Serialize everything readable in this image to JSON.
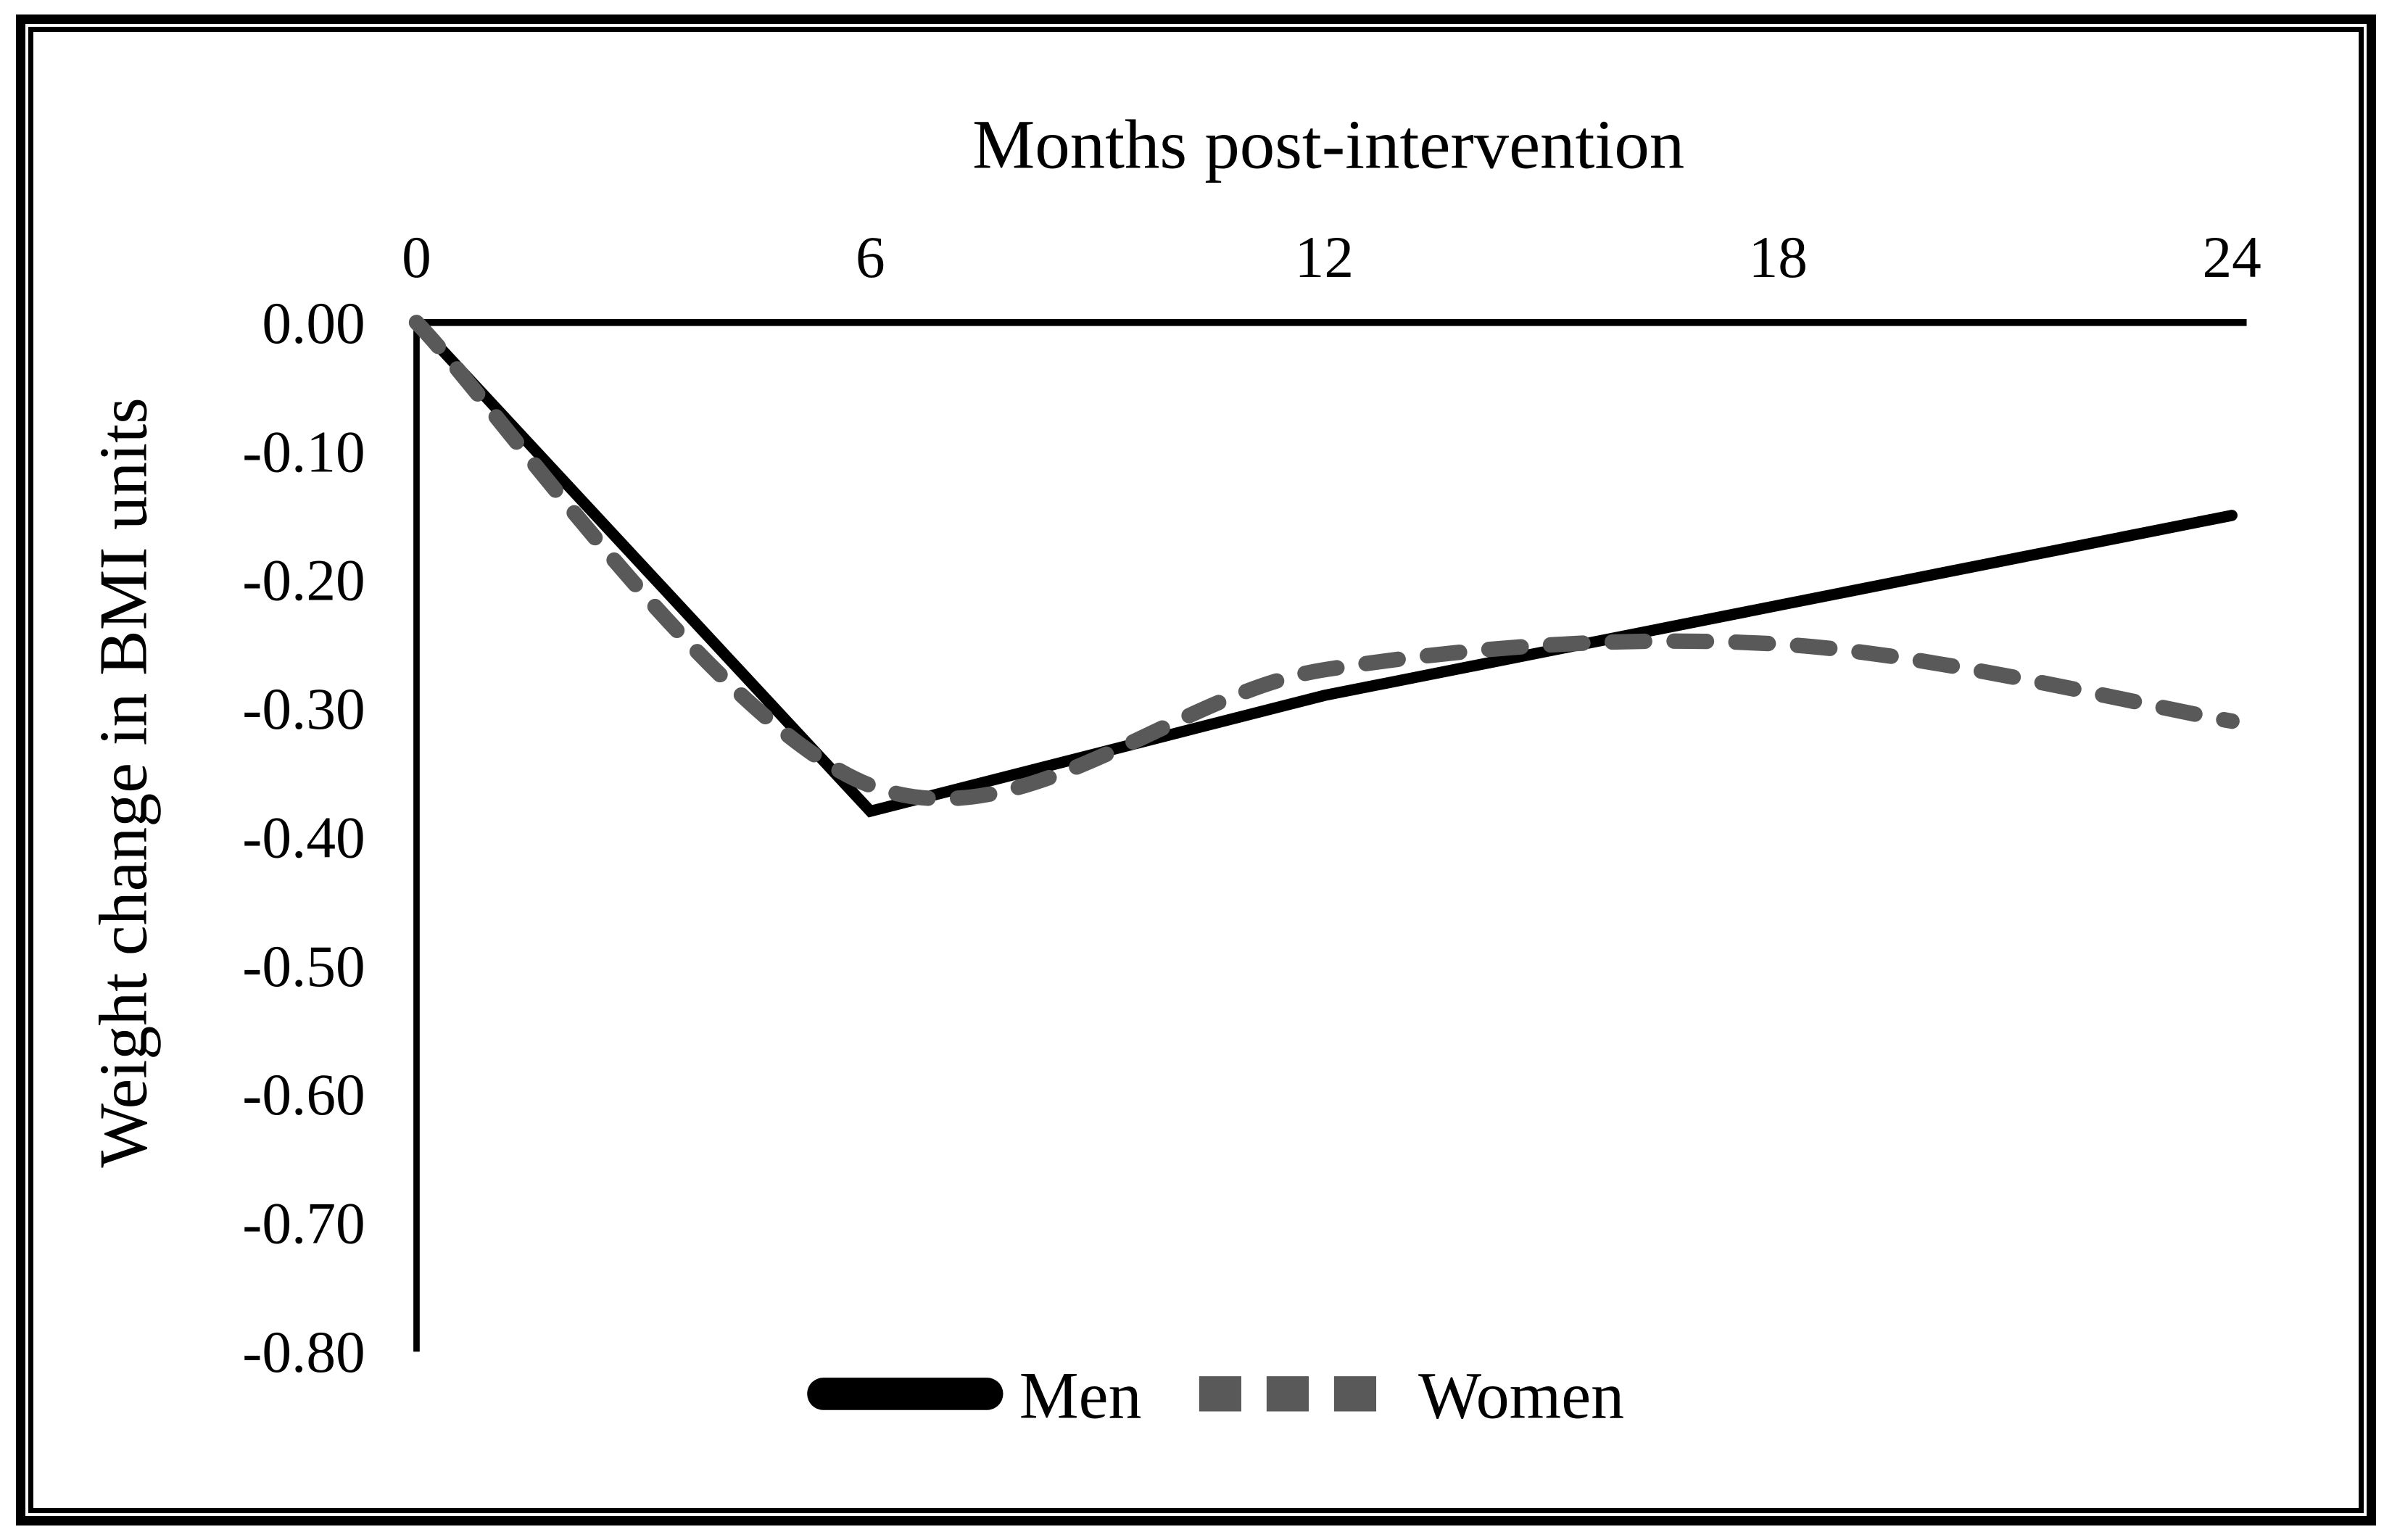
{
  "figure": {
    "background_color": "#ffffff",
    "border_color": "#000000"
  },
  "colors": {
    "men_line": "#000000",
    "women_line": "#595959",
    "axis": "#000000",
    "text": "#000000"
  },
  "legend": {
    "position": "bottom",
    "men_label": "Men",
    "women_label": "Women"
  },
  "chart_data": {
    "type": "line",
    "title": "",
    "xlabel": "Months post-intervention",
    "ylabel": "Weight change in BMI units",
    "x": [
      0,
      6,
      12,
      18,
      24
    ],
    "x_tick_labels": [
      "0",
      "6",
      "12",
      "18",
      "24"
    ],
    "xlim": [
      0,
      24
    ],
    "y_ticks": [
      0.0,
      -0.1,
      -0.2,
      -0.3,
      -0.4,
      -0.5,
      -0.6,
      -0.7,
      -0.8
    ],
    "y_tick_labels": [
      "0.00",
      "-0.10",
      "-0.20",
      "-0.30",
      "-0.40",
      "-0.50",
      "-0.60",
      "-0.70",
      "-0.80"
    ],
    "ylim": [
      -0.8,
      0.0
    ],
    "grid": false,
    "legend_position": "bottom-center",
    "series": [
      {
        "name": "Men",
        "color": "#000000",
        "style": "solid",
        "smooth": false,
        "values": [
          0.0,
          -0.38,
          -0.29,
          -0.22,
          -0.15
        ]
      },
      {
        "name": "Women",
        "color": "#595959",
        "style": "dashed",
        "smooth": true,
        "values": [
          0.0,
          -0.36,
          -0.27,
          -0.25,
          -0.31
        ]
      }
    ]
  }
}
